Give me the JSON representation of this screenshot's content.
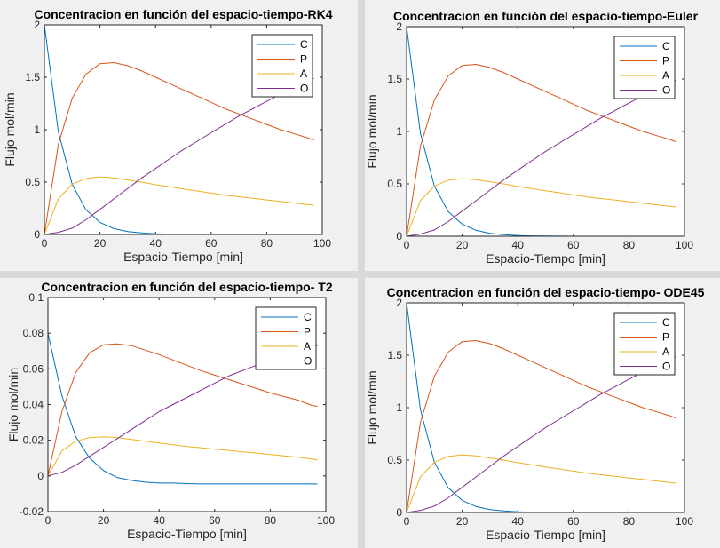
{
  "chart_data": [
    {
      "type": "line",
      "title": "Concentracion en función del espacio-tiempo-RK4",
      "xlabel": "Espacio-Tiempo [min]",
      "ylabel": "Flujo mol/min",
      "xlim": [
        0,
        100
      ],
      "ylim": [
        0,
        2
      ],
      "xticks": [
        "0",
        "20",
        "40",
        "60",
        "80",
        "100"
      ],
      "yticks": [
        "0",
        "0.5",
        "1",
        "1.5",
        "2"
      ],
      "legend": "top-right",
      "grid": false,
      "x": [
        0,
        5,
        10,
        15,
        20,
        25,
        30,
        35,
        40,
        45,
        50,
        55,
        60,
        65,
        70,
        75,
        80,
        85,
        90,
        95,
        97
      ],
      "series": [
        {
          "name": "C",
          "color": "#0072BD",
          "values": [
            2.0,
            0.98,
            0.48,
            0.235,
            0.115,
            0.056,
            0.028,
            0.014,
            0.007,
            0.003,
            0.002,
            0.001,
            0,
            0,
            0,
            0,
            0,
            0,
            0,
            0,
            0
          ]
        },
        {
          "name": "P",
          "color": "#D95319",
          "values": [
            0,
            0.86,
            1.3,
            1.53,
            1.63,
            1.64,
            1.61,
            1.56,
            1.5,
            1.44,
            1.38,
            1.32,
            1.26,
            1.2,
            1.15,
            1.1,
            1.05,
            1.0,
            0.96,
            0.92,
            0.9
          ]
        },
        {
          "name": "A",
          "color": "#EDB120",
          "values": [
            0,
            0.34,
            0.48,
            0.535,
            0.55,
            0.54,
            0.52,
            0.5,
            0.475,
            0.455,
            0.435,
            0.415,
            0.395,
            0.375,
            0.36,
            0.345,
            0.33,
            0.315,
            0.3,
            0.285,
            0.28
          ]
        },
        {
          "name": "O",
          "color": "#7E2F8E",
          "values": [
            0,
            0.02,
            0.06,
            0.14,
            0.24,
            0.34,
            0.44,
            0.54,
            0.63,
            0.72,
            0.81,
            0.89,
            0.97,
            1.05,
            1.13,
            1.2,
            1.27,
            1.34,
            1.4,
            1.46,
            1.49
          ]
        }
      ]
    },
    {
      "type": "line",
      "title": "Concentracion en función del espacio-tiempo-Euler",
      "xlabel": "Espacio-Tiempo [min]",
      "ylabel": "Flujo mol/min",
      "xlim": [
        0,
        100
      ],
      "ylim": [
        0,
        2
      ],
      "xticks": [
        "0",
        "20",
        "40",
        "60",
        "80",
        "100"
      ],
      "yticks": [
        "0",
        "0.5",
        "1",
        "1.5",
        "2"
      ],
      "legend": "top-right",
      "grid": false,
      "x": [
        0,
        5,
        10,
        15,
        20,
        25,
        30,
        35,
        40,
        45,
        50,
        55,
        60,
        65,
        70,
        75,
        80,
        85,
        90,
        95,
        97
      ],
      "series": [
        {
          "name": "C",
          "color": "#0072BD",
          "values": [
            2.0,
            0.98,
            0.48,
            0.235,
            0.115,
            0.056,
            0.028,
            0.014,
            0.007,
            0.003,
            0.002,
            0.001,
            0,
            0,
            0,
            0,
            0,
            0,
            0,
            0,
            0
          ]
        },
        {
          "name": "P",
          "color": "#D95319",
          "values": [
            0,
            0.86,
            1.3,
            1.53,
            1.63,
            1.64,
            1.61,
            1.56,
            1.5,
            1.44,
            1.38,
            1.32,
            1.26,
            1.2,
            1.15,
            1.1,
            1.05,
            1.0,
            0.96,
            0.92,
            0.9
          ]
        },
        {
          "name": "A",
          "color": "#EDB120",
          "values": [
            0,
            0.34,
            0.48,
            0.535,
            0.55,
            0.54,
            0.52,
            0.5,
            0.475,
            0.455,
            0.435,
            0.415,
            0.395,
            0.375,
            0.36,
            0.345,
            0.33,
            0.315,
            0.3,
            0.285,
            0.28
          ]
        },
        {
          "name": "O",
          "color": "#7E2F8E",
          "values": [
            0,
            0.02,
            0.06,
            0.14,
            0.24,
            0.34,
            0.44,
            0.54,
            0.63,
            0.72,
            0.81,
            0.89,
            0.97,
            1.05,
            1.13,
            1.2,
            1.27,
            1.34,
            1.4,
            1.46,
            1.49
          ]
        }
      ]
    },
    {
      "type": "line",
      "title": "Concentracion en función del espacio-tiempo- T2",
      "xlabel": "Espacio-Tiempo [min]",
      "ylabel": "Flujo mol/min",
      "xlim": [
        0,
        100
      ],
      "ylim": [
        -0.02,
        0.1
      ],
      "xticks": [
        "0",
        "20",
        "40",
        "60",
        "80",
        "100"
      ],
      "yticks": [
        "-0.02",
        "0",
        "0.02",
        "0.04",
        "0.06",
        "0.08",
        "0.1"
      ],
      "legend": "top-right",
      "grid": false,
      "x": [
        0,
        5,
        10,
        15,
        20,
        25,
        30,
        35,
        40,
        45,
        50,
        55,
        60,
        65,
        70,
        75,
        80,
        85,
        90,
        95,
        97
      ],
      "series": [
        {
          "name": "C",
          "color": "#0072BD",
          "values": [
            0.08,
            0.045,
            0.022,
            0.01,
            0.003,
            -0.001,
            -0.0025,
            -0.0035,
            -0.004,
            -0.004,
            -0.0043,
            -0.0045,
            -0.0045,
            -0.0045,
            -0.0045,
            -0.0045,
            -0.0045,
            -0.0045,
            -0.0045,
            -0.0045,
            -0.0045
          ]
        },
        {
          "name": "P",
          "color": "#D95319",
          "values": [
            0,
            0.036,
            0.058,
            0.069,
            0.0735,
            0.074,
            0.073,
            0.0705,
            0.068,
            0.065,
            0.062,
            0.059,
            0.0565,
            0.054,
            0.0515,
            0.049,
            0.0465,
            0.0445,
            0.0425,
            0.0395,
            0.039
          ]
        },
        {
          "name": "A",
          "color": "#EDB120",
          "values": [
            0,
            0.014,
            0.0195,
            0.0215,
            0.022,
            0.0215,
            0.0205,
            0.0195,
            0.0185,
            0.0175,
            0.0165,
            0.0158,
            0.015,
            0.0143,
            0.0135,
            0.0128,
            0.012,
            0.0112,
            0.0105,
            0.0095,
            0.009
          ]
        },
        {
          "name": "O",
          "color": "#7E2F8E",
          "values": [
            0,
            0.002,
            0.006,
            0.011,
            0.016,
            0.021,
            0.026,
            0.031,
            0.036,
            0.04,
            0.044,
            0.048,
            0.052,
            0.056,
            0.059,
            0.062,
            0.065,
            0.068,
            0.07,
            0.072,
            0.073
          ]
        }
      ]
    },
    {
      "type": "line",
      "title": "Concentracion en función del espacio-tiempo- ODE45",
      "xlabel": "Espacio-Tiempo [min]",
      "ylabel": "Flujo mol/min",
      "xlim": [
        0,
        100
      ],
      "ylim": [
        0,
        2
      ],
      "xticks": [
        "0",
        "20",
        "40",
        "60",
        "80",
        "100"
      ],
      "yticks": [
        "0",
        "0.5",
        "1",
        "1.5",
        "2"
      ],
      "legend": "top-right",
      "grid": false,
      "x": [
        0,
        5,
        10,
        15,
        20,
        25,
        30,
        35,
        40,
        45,
        50,
        55,
        60,
        65,
        70,
        75,
        80,
        85,
        90,
        95,
        97
      ],
      "series": [
        {
          "name": "C",
          "color": "#0072BD",
          "values": [
            2.0,
            0.98,
            0.48,
            0.235,
            0.115,
            0.056,
            0.028,
            0.014,
            0.007,
            0.003,
            0.002,
            0.001,
            0,
            0,
            0,
            0,
            0,
            0,
            0,
            0,
            0
          ]
        },
        {
          "name": "P",
          "color": "#D95319",
          "values": [
            0,
            0.86,
            1.3,
            1.53,
            1.63,
            1.64,
            1.61,
            1.56,
            1.5,
            1.44,
            1.38,
            1.32,
            1.26,
            1.2,
            1.15,
            1.1,
            1.05,
            1.0,
            0.96,
            0.92,
            0.9
          ]
        },
        {
          "name": "A",
          "color": "#EDB120",
          "values": [
            0,
            0.34,
            0.48,
            0.535,
            0.55,
            0.54,
            0.52,
            0.5,
            0.475,
            0.455,
            0.435,
            0.415,
            0.395,
            0.375,
            0.36,
            0.345,
            0.33,
            0.315,
            0.3,
            0.285,
            0.28
          ]
        },
        {
          "name": "O",
          "color": "#7E2F8E",
          "values": [
            0,
            0.02,
            0.06,
            0.14,
            0.24,
            0.34,
            0.44,
            0.54,
            0.63,
            0.72,
            0.81,
            0.89,
            0.97,
            1.05,
            1.13,
            1.2,
            1.27,
            1.34,
            1.4,
            1.46,
            1.49
          ]
        }
      ]
    }
  ]
}
